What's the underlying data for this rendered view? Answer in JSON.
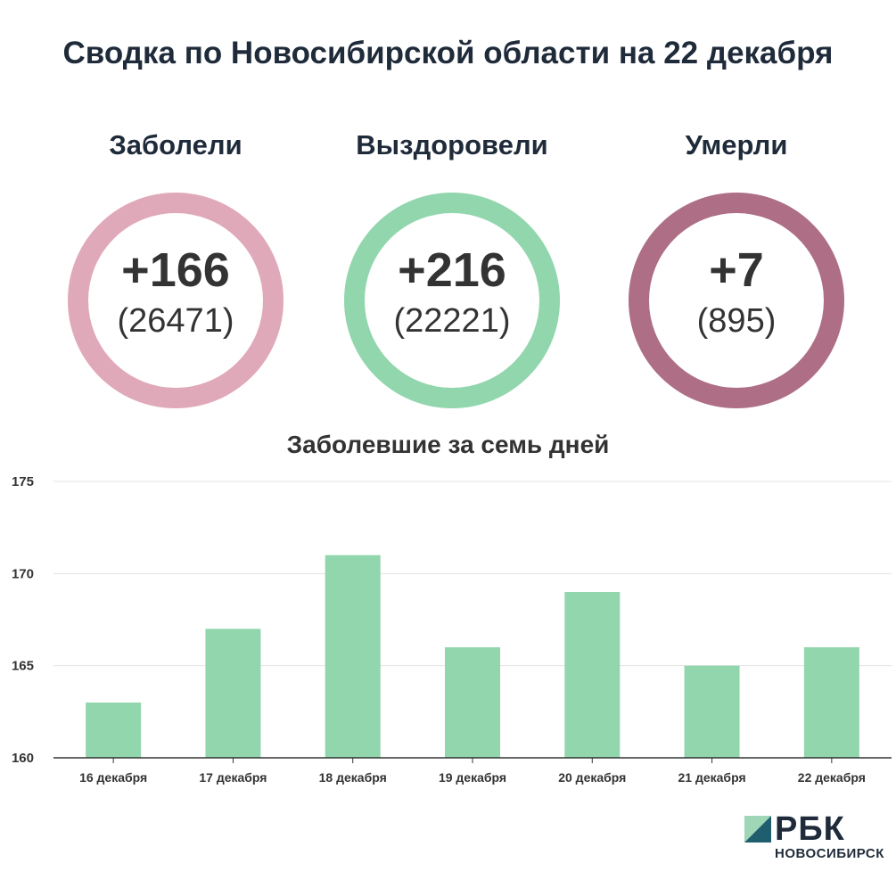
{
  "title": "Сводка по Новосибирской области на 22 декабря",
  "stats": [
    {
      "label": "Заболели",
      "delta": "+166",
      "total": "(26471)",
      "color": "#e0a9ba"
    },
    {
      "label": "Выздоровели",
      "delta": "+216",
      "total": "(22221)",
      "color": "#92d6ad"
    },
    {
      "label": "Умерли",
      "delta": "+7",
      "total": "(895)",
      "color": "#ad6e86"
    }
  ],
  "chart_data": {
    "type": "bar",
    "title": "Заболевшие за семь дней",
    "categories": [
      "16 декабря",
      "17 декабря",
      "18 декабря",
      "19 декабря",
      "20 декабря",
      "21 декабря",
      "22 декабря"
    ],
    "values": [
      163,
      167,
      171,
      166,
      169,
      165,
      166
    ],
    "ylim": [
      160,
      175
    ],
    "yticks": [
      160,
      165,
      170,
      175
    ],
    "grid": true,
    "bar_color": "#92d6ad"
  },
  "logo": {
    "name": "РБК",
    "sub": "НОВОСИБИРСК"
  }
}
